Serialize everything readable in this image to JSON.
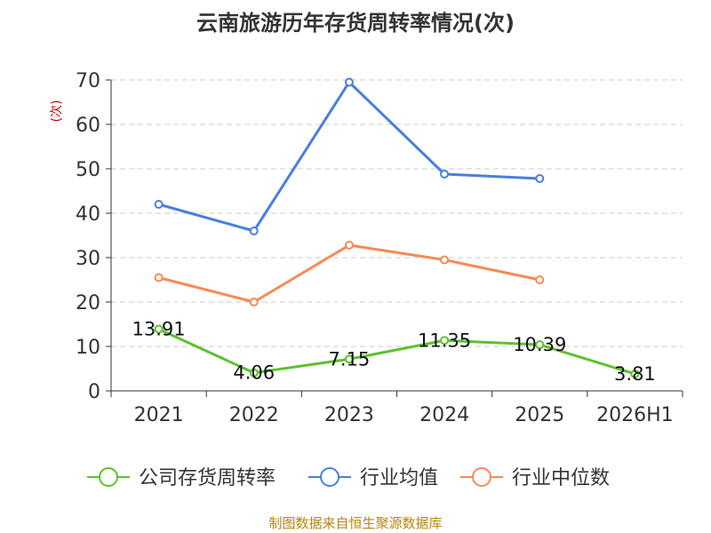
{
  "chart_data": {
    "type": "line",
    "title": "云南旅游历年存货周转率情况(次)",
    "ylabel": "(次)",
    "categories": [
      "2021",
      "2022",
      "2023",
      "2024",
      "2025",
      "2026H1"
    ],
    "ylim": [
      0,
      70
    ],
    "yticks": [
      0,
      10,
      20,
      30,
      40,
      50,
      60,
      70
    ],
    "grid": true,
    "legend_position": "bottom",
    "series": [
      {
        "name": "公司存货周转率",
        "color": "#5cc22e",
        "values": [
          13.91,
          4.06,
          7.15,
          11.35,
          10.39,
          3.81
        ],
        "labels": [
          "13.91",
          "4.06",
          "7.15",
          "11.35",
          "10.39",
          "3.81"
        ]
      },
      {
        "name": "行业均值",
        "color": "#4a7fdc",
        "values": [
          42.0,
          36.0,
          69.5,
          48.8,
          47.8,
          null
        ]
      },
      {
        "name": "行业中位数",
        "color": "#f78a55",
        "values": [
          25.5,
          20.0,
          32.8,
          29.5,
          25.0,
          null
        ]
      }
    ]
  },
  "footer": {
    "source": "制图数据来自恒生聚源数据库"
  }
}
